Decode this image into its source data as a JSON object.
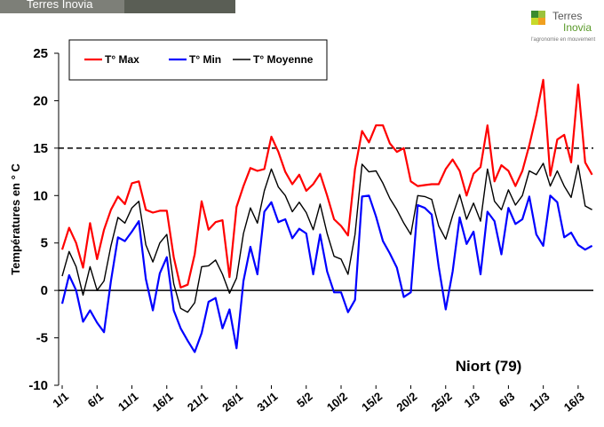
{
  "chart_data": {
    "type": "line",
    "photo_caption": "Terres Inovia",
    "logo": {
      "name_1": "Terres",
      "name_2": "Inovia",
      "tagline": "l'agronomie en mouvement"
    },
    "y_label": "Températures en ° C",
    "annotation": "Niort (79)",
    "reference_line": 15,
    "reference_color": "#000000",
    "categories": [
      "1/1",
      null,
      null,
      null,
      null,
      "6/1",
      null,
      null,
      null,
      null,
      "11/1",
      null,
      null,
      null,
      null,
      "16/1",
      null,
      null,
      null,
      null,
      "21/1",
      null,
      null,
      null,
      null,
      "26/1",
      null,
      null,
      null,
      null,
      "31/1",
      null,
      null,
      null,
      null,
      "5/2",
      null,
      null,
      null,
      null,
      "10/2",
      null,
      null,
      null,
      null,
      "15/2",
      null,
      null,
      null,
      null,
      "20/2",
      null,
      null,
      null,
      null,
      "25/2",
      null,
      null,
      null,
      "1/3",
      null,
      null,
      null,
      null,
      "6/3",
      null,
      null,
      null,
      null,
      "11/3",
      null,
      null,
      null,
      null,
      "16/3",
      null,
      null
    ],
    "series": [
      {
        "name": "T° Max",
        "color": "#ff0000",
        "values": [
          4.3,
          6.6,
          5,
          2.4,
          7.1,
          3.3,
          6.4,
          8.5,
          9.9,
          9.1,
          11.3,
          11.5,
          8.5,
          8.2,
          8.4,
          8.4,
          3.5,
          0.3,
          0.6,
          3.8,
          9.4,
          6.4,
          7.2,
          7.4,
          1.4,
          8.8,
          11,
          12.9,
          12.6,
          12.8,
          16.2,
          14.6,
          12.5,
          11.2,
          12.2,
          10.5,
          11.2,
          12.3,
          10,
          7.5,
          6.8,
          5.8,
          12.8,
          16.8,
          15.6,
          17.4,
          17.4,
          15.5,
          14.6,
          15,
          11.5,
          11,
          11.1,
          11.2,
          11.2,
          12.8,
          13.8,
          12.6,
          10,
          12.3,
          13,
          17.4,
          11.5,
          13.2,
          12.6,
          11,
          12.6,
          15.3,
          18.5,
          22.2,
          12.1,
          15.9,
          16.4,
          13.5,
          21.7,
          13.5,
          12.2
        ]
      },
      {
        "name": "T° Min",
        "color": "#0000ff",
        "values": [
          -1.4,
          1.6,
          0,
          -3.3,
          -2.1,
          -3.4,
          -4.4,
          1,
          5.6,
          5.2,
          6.2,
          7.3,
          1.2,
          -2.1,
          1.8,
          3.5,
          -2.1,
          -4,
          -5.3,
          -6.5,
          -4.5,
          -1.2,
          -0.8,
          -4,
          -2,
          -6.1,
          1,
          4.6,
          1.7,
          8.3,
          9.3,
          7.2,
          7.5,
          5.5,
          6.5,
          6,
          1.7,
          5.9,
          2,
          -0.2,
          -0.2,
          -2.3,
          -1,
          9.9,
          10,
          7.8,
          5.2,
          3.9,
          2.4,
          -0.7,
          -0.2,
          9,
          8.7,
          8,
          2.5,
          -2,
          2,
          7.7,
          4.9,
          6.2,
          1.7,
          8.3,
          7.3,
          3.8,
          8.7,
          7,
          7.5,
          9.9,
          5.9,
          4.7,
          10,
          9.3,
          5.6,
          6.1,
          4.8,
          4.3,
          4.7
        ]
      },
      {
        "name": "T° Moyenne",
        "color": "#000000",
        "values": [
          1.5,
          4.1,
          2.5,
          -0.5,
          2.5,
          0,
          1,
          4.7,
          7.7,
          7.1,
          8.7,
          9.4,
          4.8,
          3,
          5,
          5.9,
          0.7,
          -1.9,
          -2.3,
          -1.3,
          2.5,
          2.6,
          3.2,
          1.7,
          -0.3,
          1.3,
          6,
          8.7,
          7.1,
          10.5,
          12.8,
          10.9,
          10,
          8.3,
          9.3,
          8.2,
          6.4,
          9.1,
          6,
          3.6,
          3.3,
          1.7,
          5.9,
          13.3,
          12.5,
          12.6,
          11.3,
          9.7,
          8.5,
          7.1,
          5.9,
          10,
          9.9,
          9.6,
          6.8,
          5.4,
          7.9,
          10.1,
          7.5,
          9.2,
          7.3,
          12.8,
          9.4,
          8.5,
          10.6,
          9,
          10,
          12.6,
          12.2,
          13.4,
          11,
          12.6,
          11,
          9.8,
          13.2,
          8.9,
          8.5
        ]
      }
    ],
    "ylim": [
      -10,
      25
    ],
    "yticks": [
      -10,
      -5,
      0,
      5,
      10,
      15,
      20,
      25
    ]
  }
}
